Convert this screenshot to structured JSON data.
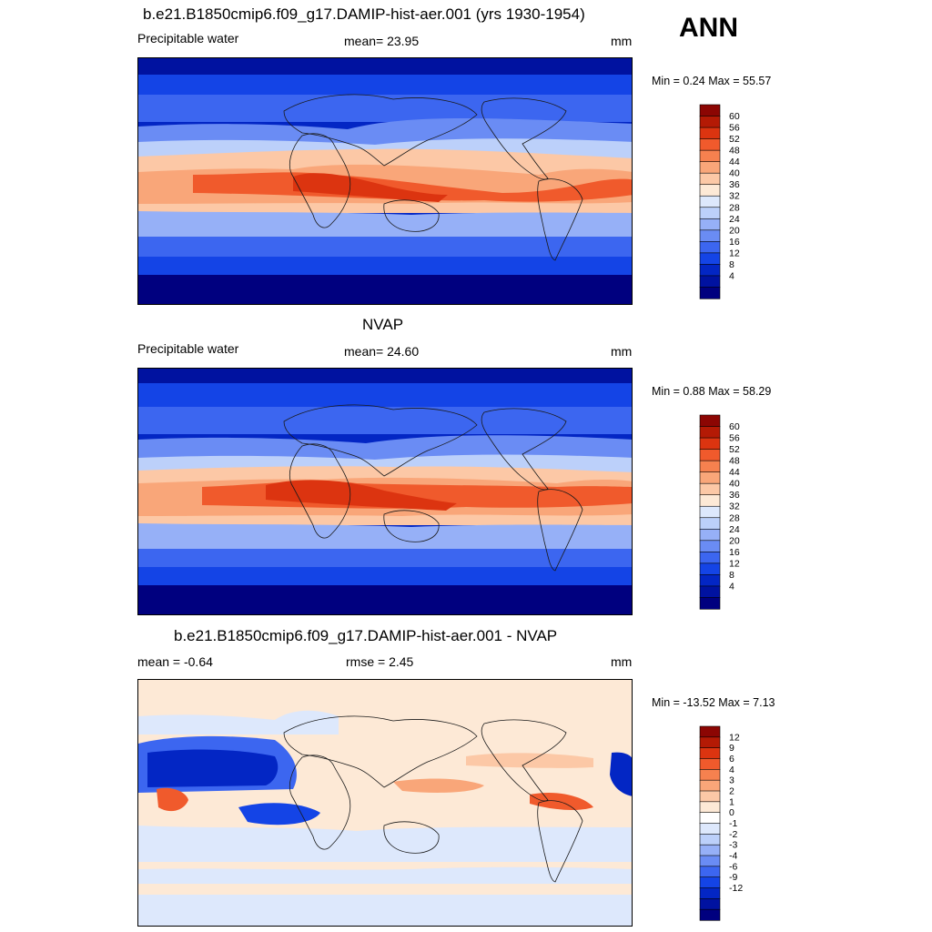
{
  "season": "ANN",
  "colors": {
    "abs_scale": [
      "#00007f",
      "#0012a0",
      "#0326c4",
      "#1444e6",
      "#3c66f0",
      "#6a8cf4",
      "#96b0f7",
      "#bcd0fa",
      "#dde8fc",
      "#fde9d6",
      "#fcc8a6",
      "#f9a679",
      "#f6814f",
      "#f05a2c",
      "#dc3410",
      "#b41a05",
      "#8c0603"
    ],
    "diff_scale": [
      "#00007f",
      "#0012a0",
      "#0326c4",
      "#1444e6",
      "#3c66f0",
      "#6a8cf4",
      "#96b0f7",
      "#bcd0fa",
      "#dde8fc",
      "#ffffff",
      "#fde9d6",
      "#fcc8a6",
      "#f9a679",
      "#f6814f",
      "#f05a2c",
      "#dc3410",
      "#b41a05",
      "#8c0603"
    ],
    "coast": "#1a1a1a"
  },
  "panels": [
    {
      "id": "model",
      "title": "b.e21.B1850cmip6.f09_g17.DAMIP-hist-aer.001 (yrs 1930-1954)",
      "left_label": "Precipitable water",
      "center_label": "mean=  23.95",
      "units": "mm",
      "minmax": "Min =   0.24 Max =  55.57",
      "colorbar_labels": [
        "60",
        "56",
        "52",
        "48",
        "44",
        "40",
        "36",
        "32",
        "28",
        "24",
        "20",
        "16",
        "12",
        "8",
        "4"
      ]
    },
    {
      "id": "obs",
      "title": "NVAP",
      "left_label": "Precipitable water",
      "center_label": "mean=  24.60",
      "units": "mm",
      "minmax": "Min =   0.88 Max =  58.29",
      "colorbar_labels": [
        "60",
        "56",
        "52",
        "48",
        "44",
        "40",
        "36",
        "32",
        "28",
        "24",
        "20",
        "16",
        "12",
        "8",
        "4"
      ]
    },
    {
      "id": "diff",
      "title": "b.e21.B1850cmip6.f09_g17.DAMIP-hist-aer.001 - NVAP",
      "left_label": "mean =  -0.64",
      "center_label": "rmse =   2.45",
      "units": "mm",
      "minmax": "Min = -13.52 Max =   7.13",
      "colorbar_labels": [
        "12",
        "9",
        "6",
        "4",
        "3",
        "2",
        "1",
        "0",
        "-1",
        "-2",
        "-3",
        "-4",
        "-6",
        "-9",
        "-12"
      ]
    }
  ]
}
